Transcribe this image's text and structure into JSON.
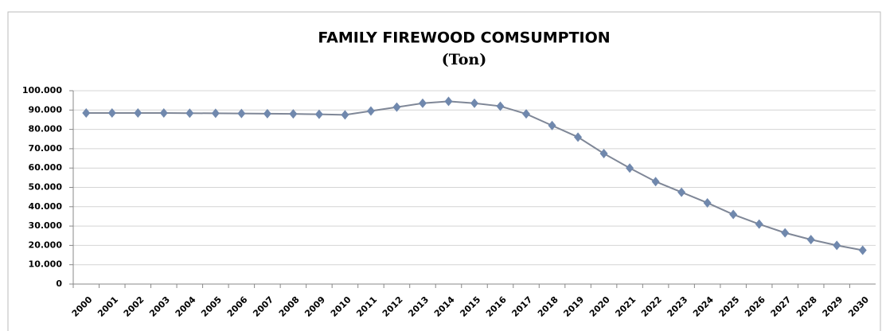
{
  "chart_data": {
    "type": "line",
    "title": "FAMILY FIREWOOD COMSUMPTION",
    "subtitle": "(Ton)",
    "categories": [
      "2000",
      "2001",
      "2002",
      "2003",
      "2004",
      "2005",
      "2006",
      "2007",
      "2008",
      "2009",
      "2010",
      "2011",
      "2012",
      "2013",
      "2014",
      "2015",
      "2016",
      "2017",
      "2018",
      "2019",
      "2020",
      "2021",
      "2022",
      "2023",
      "2024",
      "2025",
      "2026",
      "2027",
      "2028",
      "2029",
      "2030"
    ],
    "values": [
      88500,
      88500,
      88500,
      88500,
      88400,
      88300,
      88200,
      88100,
      88000,
      87800,
      87500,
      89500,
      91500,
      93500,
      94500,
      93500,
      92000,
      88000,
      82000,
      76000,
      67500,
      60000,
      53000,
      47500,
      42000,
      36000,
      31000,
      26500,
      23000,
      20000,
      17500
    ],
    "color": "#7088ad",
    "ylim": [
      0,
      100000
    ],
    "yticks": [
      0,
      {
        "value": 10000,
        "label": "10.000"
      },
      {
        "value": 20000,
        "label": "20.000"
      },
      {
        "value": 30000,
        "label": "30.000"
      },
      {
        "value": 40000,
        "label": "40.000"
      },
      {
        "value": 50000,
        "label": "50.000"
      },
      {
        "value": 60000,
        "label": "60.000"
      },
      {
        "value": 70000,
        "label": "70.000"
      },
      {
        "value": 80000,
        "label": "80.000"
      },
      {
        "value": 90000,
        "label": "90.000"
      },
      {
        "value": 100000,
        "label": "100.000"
      }
    ],
    "grid": true
  }
}
